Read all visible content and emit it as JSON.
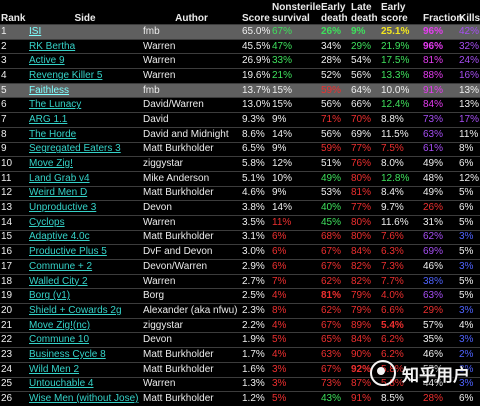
{
  "headers": [
    "Rank",
    "Side",
    "Author",
    "Score",
    "Nonsterile survival",
    "Early death",
    "Late death",
    "Early score",
    "Fraction",
    "Kills"
  ],
  "rows": [
    {
      "rank": "1",
      "side": "ISI",
      "author": "fmb",
      "score": "65.0%",
      "nonsterile": "67%",
      "early_death": "26%",
      "late_death": "9%",
      "early_score": "25.1%",
      "fraction": "96%",
      "kills": "42%",
      "highlight": true,
      "colors": {
        "nonsterile": "green",
        "early_death": "green",
        "late_death": "green",
        "early_score": "yellow",
        "fraction": "magenta",
        "kills": "purple"
      },
      "bold": {
        "early_death": true,
        "late_death": true,
        "early_score": true,
        "fraction": true
      }
    },
    {
      "rank": "2",
      "side": "RK Bertha",
      "author": "Warren",
      "score": "45.5%",
      "nonsterile": "47%",
      "early_death": "34%",
      "late_death": "29%",
      "early_score": "21.9%",
      "fraction": "96%",
      "kills": "32%",
      "colors": {
        "nonsterile": "green",
        "early_death": "white",
        "late_death": "green",
        "early_score": "green",
        "fraction": "magenta",
        "kills": "purple"
      },
      "bold": {
        "fraction": true
      }
    },
    {
      "rank": "3",
      "side": "Active 9",
      "author": "Warren",
      "score": "26.9%",
      "nonsterile": "33%",
      "early_death": "28%",
      "late_death": "54%",
      "early_score": "17.5%",
      "fraction": "81%",
      "kills": "24%",
      "colors": {
        "nonsterile": "green",
        "early_death": "white",
        "late_death": "white",
        "early_score": "green",
        "fraction": "magenta",
        "kills": "purple"
      },
      "bold": {}
    },
    {
      "rank": "4",
      "side": "Revenge Killer 5",
      "author": "Warren",
      "score": "19.6%",
      "nonsterile": "21%",
      "early_death": "52%",
      "late_death": "56%",
      "early_score": "13.3%",
      "fraction": "88%",
      "kills": "16%",
      "colors": {
        "nonsterile": "green",
        "early_death": "white",
        "late_death": "white",
        "early_score": "green",
        "fraction": "magenta",
        "kills": "purple"
      },
      "bold": {}
    },
    {
      "rank": "5",
      "side": "Faithless",
      "author": "fmb",
      "score": "13.7%",
      "nonsterile": "15%",
      "early_death": "59%",
      "late_death": "64%",
      "early_score": "10.0%",
      "fraction": "91%",
      "kills": "13%",
      "highlight": true,
      "colors": {
        "nonsterile": "white",
        "early_death": "red",
        "late_death": "white",
        "early_score": "white",
        "fraction": "magenta",
        "kills": "white"
      },
      "bold": {}
    },
    {
      "rank": "6",
      "side": "The Lunacy",
      "author": "David/Warren",
      "score": "13.0%",
      "nonsterile": "15%",
      "early_death": "56%",
      "late_death": "66%",
      "early_score": "12.4%",
      "fraction": "84%",
      "kills": "13%",
      "colors": {
        "nonsterile": "white",
        "early_death": "white",
        "late_death": "white",
        "early_score": "green",
        "fraction": "magenta",
        "kills": "white"
      },
      "bold": {}
    },
    {
      "rank": "7",
      "side": "ARG 1.1",
      "author": "David",
      "score": "9.3%",
      "nonsterile": "9%",
      "early_death": "71%",
      "late_death": "70%",
      "early_score": "8.8%",
      "fraction": "73%",
      "kills": "17%",
      "colors": {
        "nonsterile": "white",
        "early_death": "red",
        "late_death": "red",
        "early_score": "white",
        "fraction": "purple",
        "kills": "purple"
      },
      "bold": {}
    },
    {
      "rank": "8",
      "side": "The Horde",
      "author": "David and Midnight",
      "score": "8.6%",
      "nonsterile": "14%",
      "early_death": "56%",
      "late_death": "69%",
      "early_score": "11.5%",
      "fraction": "63%",
      "kills": "11%",
      "colors": {
        "nonsterile": "white",
        "early_death": "white",
        "late_death": "white",
        "early_score": "white",
        "fraction": "purple",
        "kills": "white"
      },
      "bold": {}
    },
    {
      "rank": "9",
      "side": "Segregated Eaters 3",
      "author": "Matt Burkholder",
      "score": "6.5%",
      "nonsterile": "9%",
      "early_death": "59%",
      "late_death": "77%",
      "early_score": "7.5%",
      "fraction": "61%",
      "kills": "8%",
      "colors": {
        "nonsterile": "white",
        "early_death": "red",
        "late_death": "red",
        "early_score": "red",
        "fraction": "purple",
        "kills": "white"
      },
      "bold": {}
    },
    {
      "rank": "10",
      "side": "Move Zig!",
      "author": "ziggystar",
      "score": "5.8%",
      "nonsterile": "12%",
      "early_death": "51%",
      "late_death": "76%",
      "early_score": "8.0%",
      "fraction": "49%",
      "kills": "6%",
      "colors": {
        "nonsterile": "white",
        "early_death": "white",
        "late_death": "red",
        "early_score": "white",
        "fraction": "white",
        "kills": "white"
      },
      "bold": {}
    },
    {
      "rank": "11",
      "side": "Land Grab v4",
      "author": "Mike Anderson",
      "score": "5.1%",
      "nonsterile": "10%",
      "early_death": "49%",
      "late_death": "80%",
      "early_score": "12.8%",
      "fraction": "48%",
      "kills": "12%",
      "colors": {
        "nonsterile": "white",
        "early_death": "green",
        "late_death": "red",
        "early_score": "green",
        "fraction": "white",
        "kills": "white"
      },
      "bold": {}
    },
    {
      "rank": "12",
      "side": "Weird Men D",
      "author": "Matt Burkholder",
      "score": "4.6%",
      "nonsterile": "9%",
      "early_death": "53%",
      "late_death": "81%",
      "early_score": "8.4%",
      "fraction": "49%",
      "kills": "5%",
      "colors": {
        "nonsterile": "white",
        "early_death": "white",
        "late_death": "red",
        "early_score": "white",
        "fraction": "white",
        "kills": "white"
      },
      "bold": {}
    },
    {
      "rank": "13",
      "side": "Unproductive 3",
      "author": "Devon",
      "score": "3.8%",
      "nonsterile": "14%",
      "early_death": "40%",
      "late_death": "77%",
      "early_score": "9.7%",
      "fraction": "26%",
      "kills": "6%",
      "colors": {
        "nonsterile": "white",
        "early_death": "green",
        "late_death": "red",
        "early_score": "white",
        "fraction": "red",
        "kills": "white"
      },
      "bold": {}
    },
    {
      "rank": "14",
      "side": "Cyclops",
      "author": "Warren",
      "score": "3.5%",
      "nonsterile": "11%",
      "early_death": "45%",
      "late_death": "80%",
      "early_score": "11.6%",
      "fraction": "31%",
      "kills": "5%",
      "colors": {
        "nonsterile": "red",
        "early_death": "green",
        "late_death": "red",
        "early_score": "white",
        "fraction": "white",
        "kills": "white"
      },
      "bold": {}
    },
    {
      "rank": "15",
      "side": "Adaptive 4.0c",
      "author": "Matt Burkholder",
      "score": "3.1%",
      "nonsterile": "6%",
      "early_death": "68%",
      "late_death": "80%",
      "early_score": "7.6%",
      "fraction": "62%",
      "kills": "3%",
      "colors": {
        "nonsterile": "red",
        "early_death": "red",
        "late_death": "red",
        "early_score": "red",
        "fraction": "purple",
        "kills": "blue"
      },
      "bold": {}
    },
    {
      "rank": "16",
      "side": "Productive Plus 5",
      "author": "DvF and Devon",
      "score": "3.0%",
      "nonsterile": "6%",
      "early_death": "67%",
      "late_death": "84%",
      "early_score": "6.3%",
      "fraction": "69%",
      "kills": "5%",
      "colors": {
        "nonsterile": "red",
        "early_death": "red",
        "late_death": "red",
        "early_score": "red",
        "fraction": "purple",
        "kills": "white"
      },
      "bold": {}
    },
    {
      "rank": "17",
      "side": "Commune + 2",
      "author": "Devon/Warren",
      "score": "2.9%",
      "nonsterile": "6%",
      "early_death": "67%",
      "late_death": "82%",
      "early_score": "7.3%",
      "fraction": "46%",
      "kills": "3%",
      "colors": {
        "nonsterile": "red",
        "early_death": "red",
        "late_death": "red",
        "early_score": "red",
        "fraction": "white",
        "kills": "blue"
      },
      "bold": {}
    },
    {
      "rank": "18",
      "side": "Walled City 2",
      "author": "Warren",
      "score": "2.7%",
      "nonsterile": "7%",
      "early_death": "62%",
      "late_death": "82%",
      "early_score": "7.7%",
      "fraction": "38%",
      "kills": "5%",
      "colors": {
        "nonsterile": "red",
        "early_death": "red",
        "late_death": "red",
        "early_score": "red",
        "fraction": "blue",
        "kills": "white"
      },
      "bold": {}
    },
    {
      "rank": "19",
      "side": "Borg (v1)",
      "author": "Borg",
      "score": "2.5%",
      "nonsterile": "4%",
      "early_death": "81%",
      "late_death": "79%",
      "early_score": "4.0%",
      "fraction": "63%",
      "kills": "5%",
      "colors": {
        "nonsterile": "red",
        "early_death": "red",
        "late_death": "red",
        "early_score": "red",
        "fraction": "purple",
        "kills": "white"
      },
      "bold": {
        "early_death": true
      }
    },
    {
      "rank": "20",
      "side": "Shield + Cowards 2g",
      "author": "Alexander (aka nfwu)",
      "score": "2.3%",
      "nonsterile": "8%",
      "early_death": "62%",
      "late_death": "79%",
      "early_score": "6.6%",
      "fraction": "29%",
      "kills": "3%",
      "colors": {
        "nonsterile": "red",
        "early_death": "red",
        "late_death": "red",
        "early_score": "red",
        "fraction": "red",
        "kills": "blue"
      },
      "bold": {}
    },
    {
      "rank": "21",
      "side": "Move Zig!(nc)",
      "author": "ziggystar",
      "score": "2.2%",
      "nonsterile": "4%",
      "early_death": "67%",
      "late_death": "89%",
      "early_score": "5.4%",
      "fraction": "57%",
      "kills": "4%",
      "colors": {
        "nonsterile": "red",
        "early_death": "red",
        "late_death": "red",
        "early_score": "red",
        "fraction": "white",
        "kills": "white"
      },
      "bold": {
        "early_score": true
      }
    },
    {
      "rank": "22",
      "side": "Commune 10",
      "author": "Devon",
      "score": "1.9%",
      "nonsterile": "5%",
      "early_death": "65%",
      "late_death": "84%",
      "early_score": "6.2%",
      "fraction": "35%",
      "kills": "3%",
      "colors": {
        "nonsterile": "red",
        "early_death": "red",
        "late_death": "red",
        "early_score": "red",
        "fraction": "white",
        "kills": "blue"
      },
      "bold": {}
    },
    {
      "rank": "23",
      "side": "Business Cycle 8",
      "author": "Matt Burkholder",
      "score": "1.7%",
      "nonsterile": "4%",
      "early_death": "63%",
      "late_death": "90%",
      "early_score": "6.2%",
      "fraction": "46%",
      "kills": "2%",
      "colors": {
        "nonsterile": "red",
        "early_death": "red",
        "late_death": "red",
        "early_score": "red",
        "fraction": "white",
        "kills": "blue"
      },
      "bold": {}
    },
    {
      "rank": "24",
      "side": "Wild Men 2",
      "author": "Matt Burkholder",
      "score": "1.6%",
      "nonsterile": "3%",
      "early_death": "67%",
      "late_death": "92%",
      "early_score": "5.8%",
      "fraction": "55%",
      "kills": "3%",
      "colors": {
        "nonsterile": "red",
        "early_death": "red",
        "late_death": "red",
        "early_score": "red",
        "fraction": "white",
        "kills": "blue"
      },
      "bold": {
        "late_death": true
      }
    },
    {
      "rank": "25",
      "side": "Untouchable 4",
      "author": "Warren",
      "score": "1.3%",
      "nonsterile": "3%",
      "early_death": "73%",
      "late_death": "87%",
      "early_score": "5.8%",
      "fraction": "44%",
      "kills": "3%",
      "colors": {
        "nonsterile": "red",
        "early_death": "red",
        "late_death": "red",
        "early_score": "red",
        "fraction": "white",
        "kills": "blue"
      },
      "bold": {}
    },
    {
      "rank": "26",
      "side": "Wise Men (without Jose)",
      "author": "Matt Burkholder",
      "score": "1.2%",
      "nonsterile": "5%",
      "early_death": "43%",
      "late_death": "91%",
      "early_score": "8.5%",
      "fraction": "28%",
      "kills": "6%",
      "colors": {
        "nonsterile": "red",
        "early_death": "green",
        "late_death": "red",
        "early_score": "white",
        "fraction": "red",
        "kills": "white"
      },
      "bold": {}
    }
  ],
  "watermark": "知乎用户",
  "palette": {
    "white": "#efefef",
    "green": "#3ee05c",
    "red": "#ee2f2f",
    "yellow": "#f2e61e",
    "magenta": "#e43cf0",
    "purple": "#a64ef3",
    "blue": "#4f63ff",
    "side_link": "#35d2c8",
    "highlight_row": "#5f5f5f"
  }
}
